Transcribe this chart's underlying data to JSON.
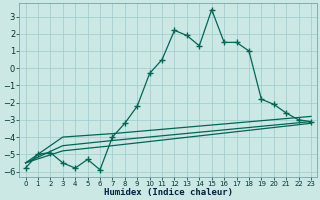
{
  "xlabel": "Humidex (Indice chaleur)",
  "bg_color": "#cce8e4",
  "grid_color": "#99cccc",
  "line_color": "#006655",
  "xlim": [
    -0.5,
    23.5
  ],
  "ylim": [
    -6.3,
    3.8
  ],
  "yticks": [
    -6,
    -5,
    -4,
    -3,
    -2,
    -1,
    0,
    1,
    2,
    3
  ],
  "xticks": [
    0,
    1,
    2,
    3,
    4,
    5,
    6,
    7,
    8,
    9,
    10,
    11,
    12,
    13,
    14,
    15,
    16,
    17,
    18,
    19,
    20,
    21,
    22,
    23
  ],
  "series1_x": [
    0,
    1,
    2,
    3,
    4,
    5,
    6,
    7,
    8,
    9,
    10,
    11,
    12,
    13,
    14,
    15,
    16,
    17,
    18,
    19,
    20,
    21,
    22,
    23
  ],
  "series1_y": [
    -5.8,
    -5.0,
    -4.9,
    -5.5,
    -5.8,
    -5.3,
    -5.9,
    -4.0,
    -3.2,
    -2.2,
    -0.3,
    0.5,
    2.2,
    1.9,
    1.3,
    3.4,
    1.5,
    1.5,
    1.0,
    -1.8,
    -2.1,
    -2.6,
    -3.0,
    -3.1
  ],
  "series2_x": [
    0,
    3,
    7,
    23
  ],
  "series2_y": [
    -5.5,
    -4.0,
    -3.8,
    -2.8
  ],
  "series3_x": [
    0,
    3,
    7,
    23
  ],
  "series3_y": [
    -5.5,
    -4.5,
    -4.2,
    -3.1
  ],
  "series4_x": [
    0,
    3,
    7,
    23
  ],
  "series4_y": [
    -5.5,
    -4.8,
    -4.5,
    -3.2
  ]
}
